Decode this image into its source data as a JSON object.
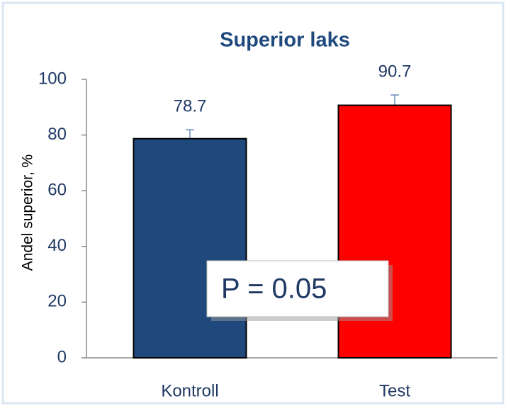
{
  "chart_data": {
    "type": "bar",
    "title": "Superior laks",
    "y_label": "Andel superior, %",
    "categories": [
      "Kontroll",
      "Test"
    ],
    "values": [
      78.7,
      90.7
    ],
    "errors": [
      3.2,
      3.7
    ],
    "colors": [
      "#1f497d",
      "#ff0000"
    ],
    "ylim": [
      0,
      100
    ],
    "yticks": [
      0,
      20,
      40,
      60,
      80,
      100
    ],
    "grid": false,
    "annotation": "P = 0.05"
  }
}
